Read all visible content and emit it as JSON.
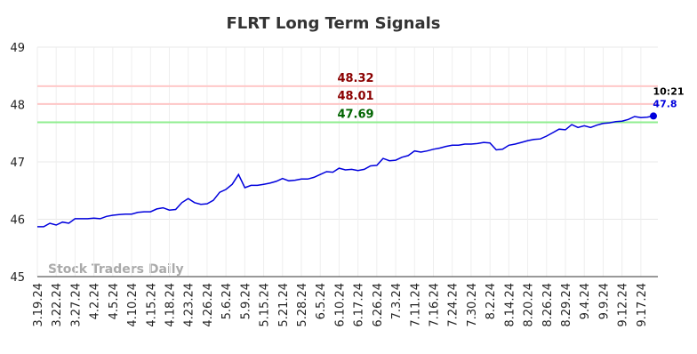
{
  "chart_data": {
    "type": "line",
    "title": "FLRT Long Term Signals",
    "categories": [
      "3.19.24",
      null,
      null,
      "3.22.24",
      null,
      null,
      "3.27.24",
      null,
      null,
      "4.2.24",
      null,
      null,
      "4.5.24",
      null,
      null,
      "4.10.24",
      null,
      null,
      "4.15.24",
      null,
      null,
      "4.18.24",
      null,
      null,
      "4.23.24",
      null,
      null,
      "4.26.24",
      null,
      null,
      "5.6.24",
      null,
      null,
      "5.9.24",
      null,
      null,
      "5.15.24",
      null,
      null,
      "5.21.24",
      null,
      null,
      "5.28.24",
      null,
      null,
      "6.5.24",
      null,
      null,
      "6.10.24",
      null,
      null,
      "6.17.24",
      null,
      null,
      "6.26.24",
      null,
      null,
      "7.3.24",
      null,
      null,
      "7.11.24",
      null,
      null,
      "7.16.24",
      null,
      null,
      "7.24.24",
      null,
      null,
      "7.30.24",
      null,
      null,
      "8.2.24",
      null,
      null,
      "8.14.24",
      null,
      null,
      "8.20.24",
      null,
      null,
      "8.26.24",
      null,
      null,
      "8.29.24",
      null,
      null,
      "9.4.24",
      null,
      null,
      "9.9.24",
      null,
      null,
      "9.12.24",
      null,
      null,
      "9.17.24",
      null,
      null
    ],
    "series": [
      {
        "name": "FLRT",
        "color": "#0000dd",
        "values": [
          45.87,
          45.87,
          45.93,
          45.9,
          45.95,
          45.93,
          46.01,
          46.01,
          46.01,
          46.02,
          46.01,
          46.05,
          46.07,
          46.08,
          46.09,
          46.09,
          46.12,
          46.13,
          46.13,
          46.18,
          46.2,
          46.16,
          46.17,
          46.29,
          46.36,
          46.29,
          46.26,
          46.27,
          46.33,
          46.47,
          46.52,
          46.61,
          46.78,
          46.55,
          46.59,
          46.59,
          46.61,
          46.63,
          46.66,
          46.71,
          46.67,
          46.68,
          46.7,
          46.7,
          46.73,
          46.78,
          46.83,
          46.82,
          46.89,
          46.86,
          46.87,
          46.85,
          46.87,
          46.93,
          46.94,
          47.06,
          47.02,
          47.03,
          47.08,
          47.11,
          47.19,
          47.17,
          47.19,
          47.22,
          47.24,
          47.27,
          47.29,
          47.29,
          47.31,
          47.31,
          47.32,
          47.34,
          47.33,
          47.21,
          47.22,
          47.29,
          47.31,
          47.34,
          47.37,
          47.39,
          47.4,
          47.45,
          47.51,
          47.57,
          47.56,
          47.65,
          47.6,
          47.63,
          47.6,
          47.64,
          47.67,
          47.68,
          47.7,
          47.71,
          47.74,
          47.79,
          47.77,
          47.78,
          47.8
        ]
      }
    ],
    "last_time": "10:21",
    "hlines": [
      {
        "value": 48.32,
        "color": "#ffc8c8",
        "text_color": "#8b0000"
      },
      {
        "value": 48.01,
        "color": "#ffc8c8",
        "text_color": "#8b0000"
      },
      {
        "value": 47.69,
        "color": "#90ee90",
        "text_color": "#006400"
      }
    ],
    "watermark": "Stock Traders Daily",
    "ylim": [
      45,
      49
    ],
    "yticks": [
      45,
      46,
      47,
      48,
      49
    ],
    "grid": true
  }
}
